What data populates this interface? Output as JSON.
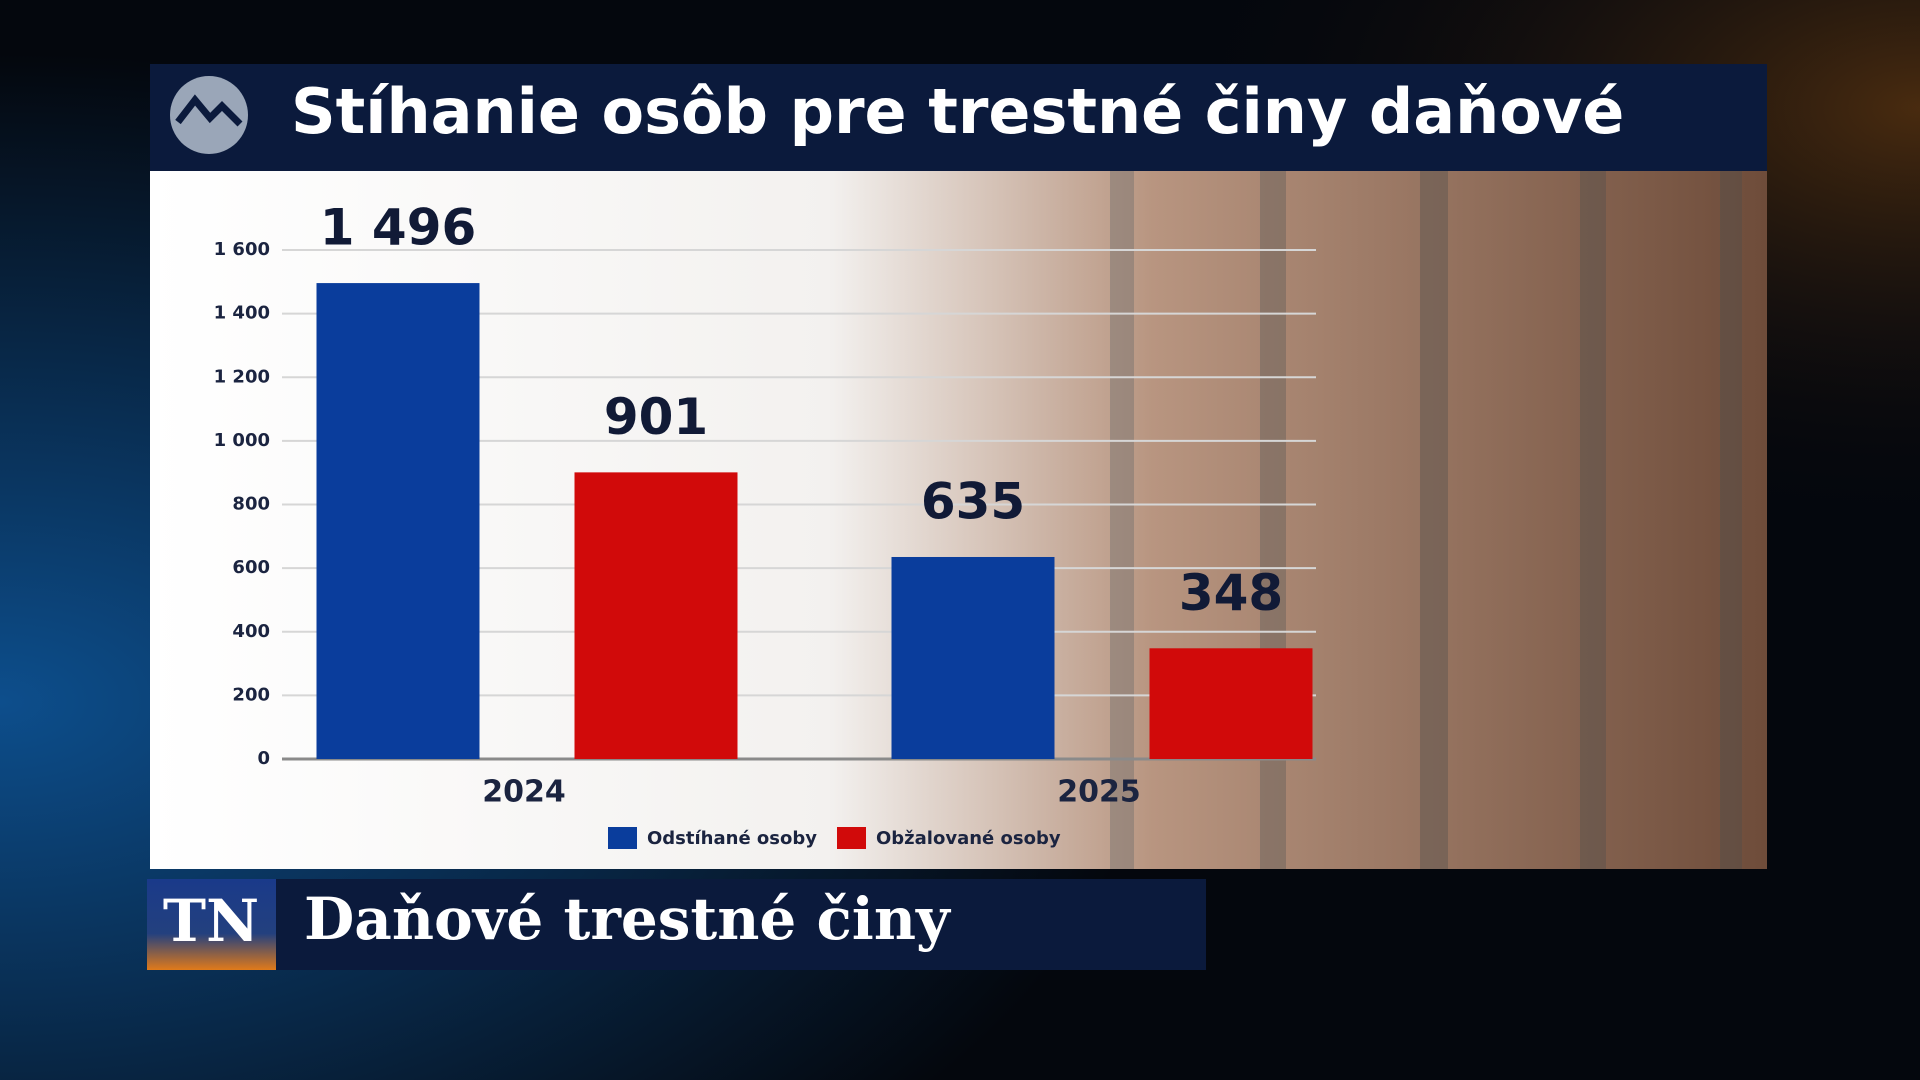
{
  "chart_data": {
    "type": "bar",
    "title": "Stíhanie osôb pre trestné činy daňové",
    "categories": [
      "2024",
      "2025"
    ],
    "series": [
      {
        "name": "Odstíhané osoby",
        "color": "#0a3d9c",
        "values": [
          1496,
          635
        ],
        "value_labels": [
          "1 496",
          "635"
        ]
      },
      {
        "name": "Obžalované osoby",
        "color": "#d10a0a",
        "values": [
          901,
          348
        ],
        "value_labels": [
          "901",
          "348"
        ]
      }
    ],
    "ylim": [
      0,
      1600
    ],
    "yticks": [
      0,
      200,
      400,
      600,
      800,
      {
        "value": 1000,
        "label": "1 000"
      },
      {
        "value": 1200,
        "label": "1 200"
      },
      {
        "value": 1400,
        "label": "1 400"
      },
      {
        "value": 1600,
        "label": "1 600"
      }
    ],
    "grid": true
  },
  "ticker": {
    "logo": "TN",
    "headline": "Daňové trestné činy"
  }
}
